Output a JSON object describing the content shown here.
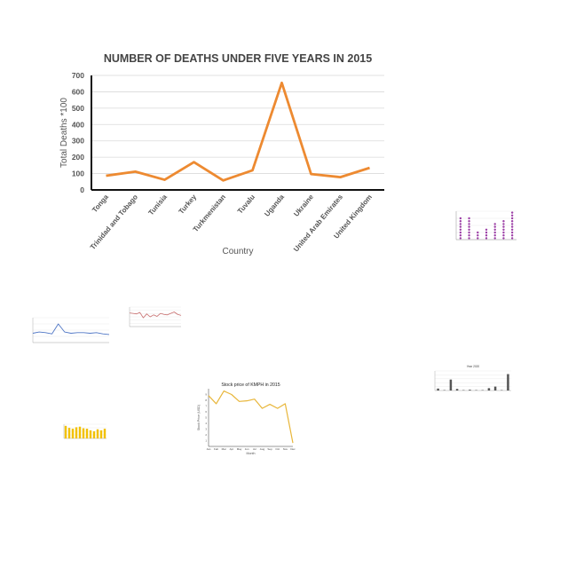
{
  "chart_data": [
    {
      "type": "line",
      "title": "NUMBER OF DEATHS UNDER FIVE YEARS IN 2015",
      "xlabel": "Country",
      "ylabel": "Total Deaths *100",
      "categories": [
        "Tonga",
        "Trinidad and Tobago",
        "Tunisia",
        "Turkey",
        "Turkmenistan",
        "Tuvalu",
        "Uganda",
        "Ukraine",
        "United Arab Emirates",
        "United Kingdom"
      ],
      "values": [
        87,
        112,
        62,
        170,
        58,
        120,
        655,
        97,
        78,
        135
      ],
      "yticks": [
        0,
        100,
        200,
        300,
        400,
        500,
        600,
        700
      ],
      "ylim": [
        0,
        700
      ],
      "grid": true,
      "color": "#ed8a31"
    },
    {
      "type": "scatter",
      "title": "",
      "categories": [
        "",
        "",
        "",
        "",
        "",
        "",
        ""
      ],
      "values": [
        8,
        8,
        3,
        4,
        6,
        7,
        10
      ],
      "ylim": [
        0,
        10
      ],
      "color": "#9c3ea6"
    },
    {
      "type": "line",
      "title": "",
      "categories": [
        "",
        "",
        "",
        "",
        "",
        "",
        "",
        "",
        "",
        "",
        "",
        "",
        ""
      ],
      "values": [
        15,
        17,
        16,
        14,
        30,
        17,
        15,
        16,
        16,
        15,
        16,
        14,
        13
      ],
      "ylim": [
        0,
        40
      ],
      "color": "#4f76c5"
    },
    {
      "type": "line",
      "title": "",
      "categories": [
        "",
        "",
        "",
        "",
        "",
        "",
        "",
        "",
        "",
        "",
        "",
        "",
        "",
        "",
        "",
        ""
      ],
      "values": [
        28,
        27,
        26,
        29,
        18,
        26,
        20,
        24,
        21,
        27,
        25,
        24,
        27,
        30,
        25,
        23
      ],
      "ylim": [
        0,
        40
      ],
      "color": "#c86e6e"
    },
    {
      "type": "line",
      "title": "Stock price of KMPH in 2015",
      "xlabel": "Month",
      "ylabel": "Stock Price (USD)",
      "categories": [
        "Jan",
        "Feb",
        "Mar",
        "Apr",
        "May",
        "Jun",
        "Jul",
        "Aug",
        "Sep",
        "Oct",
        "Nov",
        "Dec"
      ],
      "values": [
        8.8,
        7.4,
        9.6,
        9.0,
        7.8,
        7.9,
        8.2,
        6.6,
        7.3,
        6.6,
        7.4,
        0.6
      ],
      "yticks": [
        1,
        2,
        3,
        4,
        5,
        6,
        7,
        8,
        9
      ],
      "ylim": [
        0,
        10
      ],
      "color": "#e8b63a"
    },
    {
      "type": "bar",
      "title": "Year 2020",
      "categories": [
        "",
        "",
        "",
        "",
        "",
        "",
        "",
        "",
        "",
        "",
        "",
        ""
      ],
      "values": [
        5,
        1,
        28,
        4,
        1,
        2,
        1,
        1,
        6,
        10,
        1,
        42
      ],
      "ylim": [
        0,
        50
      ],
      "color": "#555555"
    },
    {
      "type": "bar",
      "title": "",
      "categories": [
        "",
        "",
        "",
        "",
        "",
        "",
        "",
        "",
        "",
        "",
        "",
        ""
      ],
      "values": [
        62,
        52,
        48,
        55,
        58,
        50,
        48,
        40,
        35,
        45,
        40,
        48
      ],
      "ylim": [
        0,
        70
      ],
      "color": "#f2c100"
    }
  ]
}
